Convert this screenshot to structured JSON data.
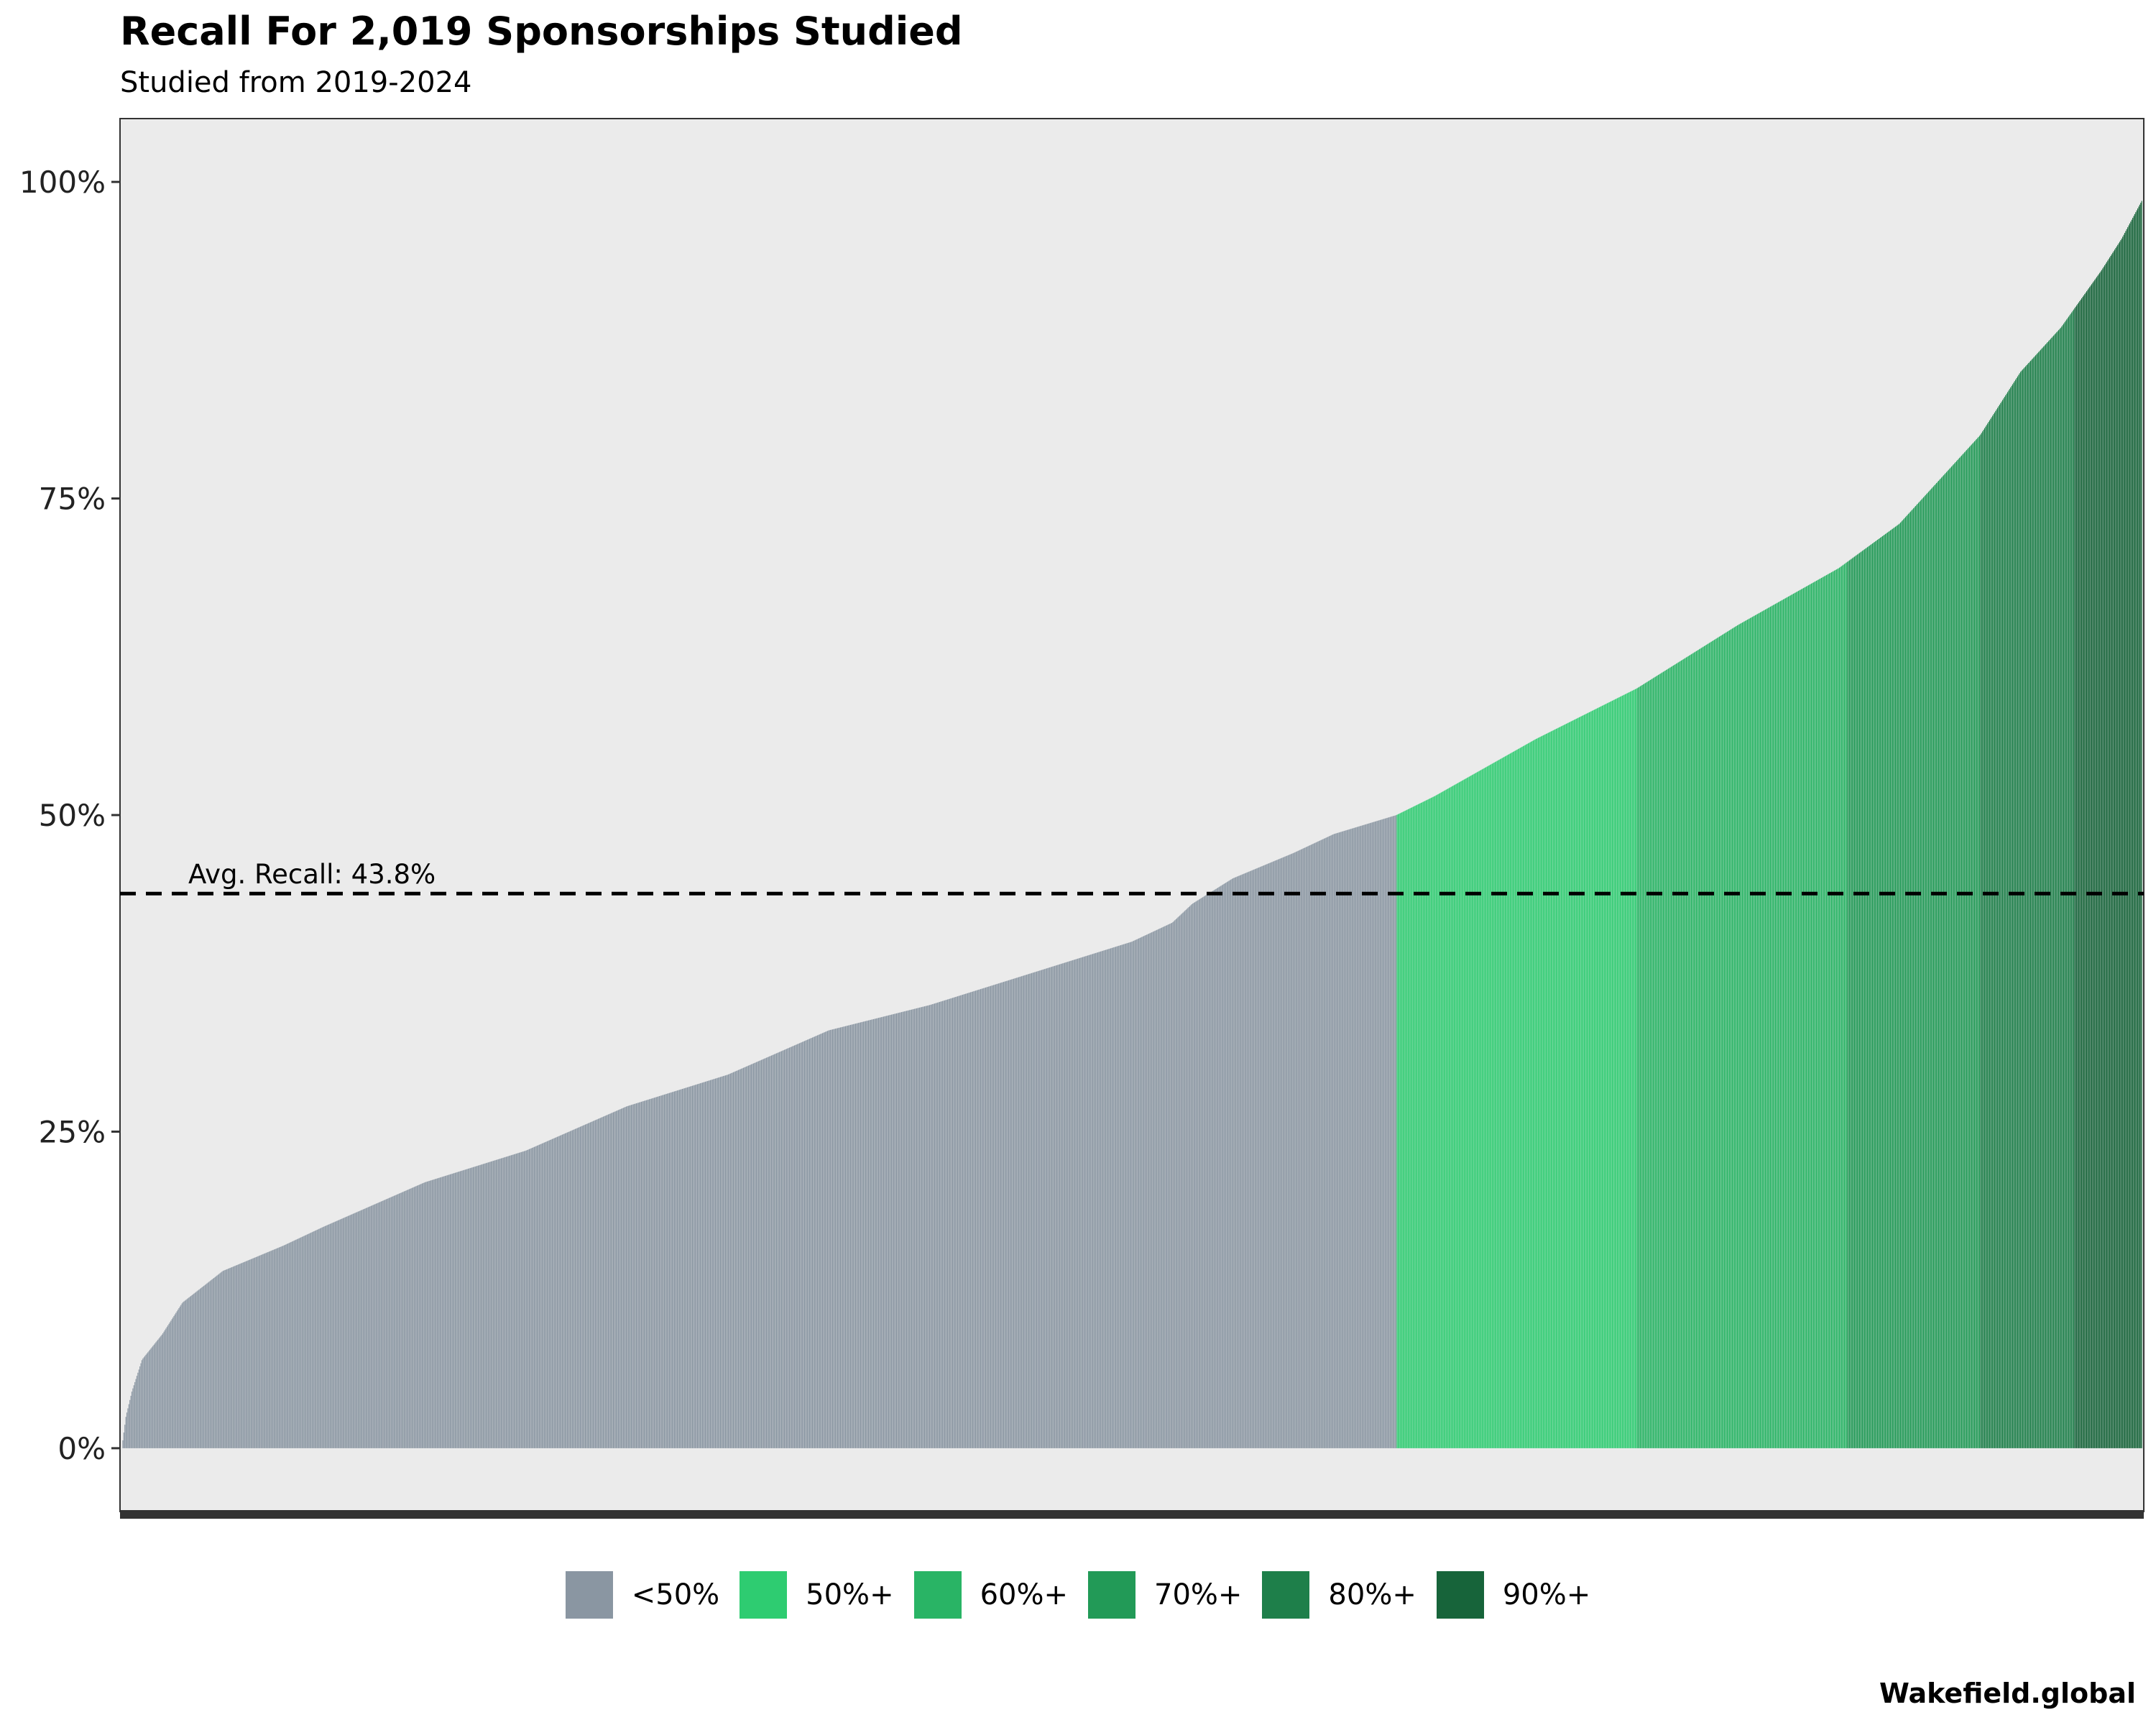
{
  "chart_data": {
    "type": "bar",
    "title": "Recall For 2,019 Sponsorships Studied",
    "subtitle": "Studied from 2019-2024",
    "n_bars": 2019,
    "sorted": "ascending",
    "ylim": [
      -0.05,
      1.05
    ],
    "y_ticks": [
      0,
      0.25,
      0.5,
      0.75,
      1.0
    ],
    "y_tick_labels": [
      "0%",
      "25%",
      "50%",
      "75%",
      "100%"
    ],
    "grid": false,
    "legend_position": "bottom",
    "recall_curve": {
      "percentile": [
        0,
        0.002,
        0.005,
        0.01,
        0.02,
        0.03,
        0.05,
        0.08,
        0.1,
        0.15,
        0.2,
        0.25,
        0.3,
        0.35,
        0.4,
        0.45,
        0.5,
        0.52,
        0.53,
        0.55,
        0.58,
        0.6,
        0.631,
        0.65,
        0.7,
        0.75,
        0.8,
        0.85,
        0.88,
        0.9,
        0.92,
        0.94,
        0.96,
        0.98,
        0.99,
        1.0
      ],
      "recall": [
        0.0,
        0.025,
        0.045,
        0.07,
        0.09,
        0.115,
        0.14,
        0.16,
        0.175,
        0.21,
        0.235,
        0.27,
        0.295,
        0.33,
        0.35,
        0.375,
        0.4,
        0.415,
        0.43,
        0.45,
        0.47,
        0.485,
        0.5,
        0.515,
        0.56,
        0.6,
        0.65,
        0.695,
        0.73,
        0.765,
        0.8,
        0.85,
        0.885,
        0.93,
        0.955,
        0.985
      ]
    },
    "series": [
      {
        "name": "<50%",
        "min": 0.0,
        "color": "#8a96a2"
      },
      {
        "name": "50%+",
        "min": 0.5,
        "color": "#2ecc71"
      },
      {
        "name": "60%+",
        "min": 0.6,
        "color": "#29b465"
      },
      {
        "name": "70%+",
        "min": 0.7,
        "color": "#229a57"
      },
      {
        "name": "80%+",
        "min": 0.8,
        "color": "#1e7f4a"
      },
      {
        "name": "90%+",
        "min": 0.9,
        "color": "#17643a"
      }
    ],
    "reference_line": {
      "value": 0.438,
      "label": "Avg. Recall: 43.8%",
      "style": "dashed"
    }
  },
  "caption": "Wakefield.global"
}
